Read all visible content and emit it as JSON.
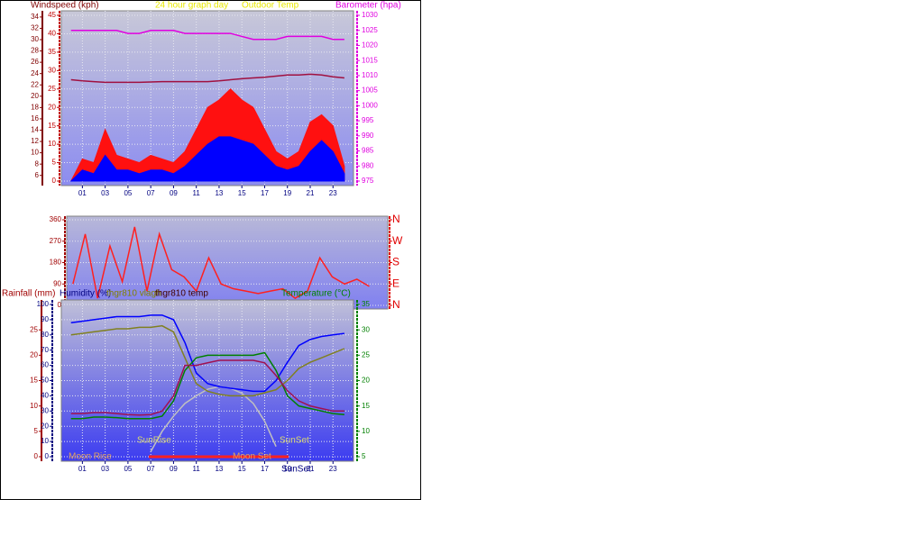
{
  "chart_data": [
    {
      "type": "line",
      "grid": true,
      "labels": [
        {
          "text": "Windspeed (kph)",
          "color": "#800000"
        },
        {
          "text": "24 hour graph day",
          "color": "#e8e800"
        },
        {
          "text": "Outdoor Temp",
          "color": "#e8e800"
        },
        {
          "text": "Barometer (hpa)",
          "color": "#e000e0"
        }
      ],
      "x": [
        0,
        1,
        2,
        3,
        4,
        5,
        6,
        7,
        8,
        9,
        10,
        11,
        12,
        13,
        14,
        15,
        16,
        17,
        18,
        19,
        20,
        21,
        22,
        23,
        24
      ],
      "xlim": [
        -0.85,
        24.8
      ],
      "xticks": [
        {
          "value": 1,
          "label": "01"
        },
        {
          "value": 3,
          "label": "03"
        },
        {
          "value": 5,
          "label": "05"
        },
        {
          "value": 7,
          "label": "07"
        },
        {
          "value": 9,
          "label": "09"
        },
        {
          "value": 11,
          "label": "11"
        },
        {
          "value": 13,
          "label": "13"
        },
        {
          "value": 15,
          "label": "15"
        },
        {
          "value": 17,
          "label": "17"
        },
        {
          "value": 19,
          "label": "19"
        },
        {
          "value": 21,
          "label": "21"
        },
        {
          "value": 23,
          "label": "23"
        }
      ],
      "ylim": [
        0,
        45
      ],
      "yticks": [
        0,
        5,
        10,
        15,
        20,
        25,
        30,
        35,
        40,
        45
      ],
      "y3lim": [
        5,
        34.3
      ],
      "y3ticks": [
        6,
        8,
        10,
        12,
        14,
        16,
        18,
        20,
        22,
        24,
        26,
        28,
        30,
        32,
        34
      ],
      "y2lim": [
        975,
        1030
      ],
      "y2ticks": [
        975,
        980,
        985,
        990,
        995,
        1000,
        1005,
        1010,
        1015,
        1020,
        1025,
        1030
      ],
      "series": [
        {
          "color": "#ff1010",
          "style": "area",
          "values": [
            0,
            6,
            5,
            14,
            7,
            6,
            5,
            7,
            6,
            5,
            8,
            14,
            20,
            22,
            25,
            22,
            20,
            14,
            8,
            6,
            8,
            16,
            18,
            15,
            4
          ]
        },
        {
          "color": "#0000ff",
          "style": "area",
          "values": [
            0,
            3,
            2,
            7,
            3,
            3,
            2,
            3,
            3,
            2,
            4,
            7,
            10,
            12,
            12,
            11,
            10,
            7,
            4,
            3,
            4,
            8,
            11,
            8,
            2
          ]
        },
        {
          "color": "#e000e0",
          "axis": "y2",
          "values": [
            1025,
            1025,
            1025,
            1025,
            1025,
            1024,
            1024,
            1025,
            1025,
            1025,
            1024,
            1024,
            1024,
            1024,
            1024,
            1023,
            1022,
            1022,
            1022,
            1023,
            1023,
            1023,
            1023,
            1022,
            1022
          ]
        },
        {
          "color": "#a01040",
          "values": [
            27.5,
            27.2,
            27,
            26.8,
            26.8,
            26.8,
            26.8,
            26.9,
            27,
            27,
            27,
            27,
            27,
            27.2,
            27.5,
            27.8,
            28,
            28.2,
            28.5,
            28.8,
            28.8,
            29,
            28.8,
            28.3,
            28
          ]
        }
      ]
    },
    {
      "type": "line",
      "grid": true,
      "labels": [],
      "x": [
        0,
        1,
        2,
        3,
        4,
        5,
        6,
        7,
        8,
        9,
        10,
        11,
        12,
        13,
        14,
        15,
        16,
        17,
        18,
        19,
        20,
        21,
        22,
        23,
        24
      ],
      "xlim": [
        -0.5,
        25.5
      ],
      "xticks": [],
      "ylim": [
        0,
        360
      ],
      "yticks": [
        0,
        90,
        180,
        270,
        360
      ],
      "y2lim": [
        0,
        360
      ],
      "y2ticks": [
        {
          "value": 360,
          "label": "N"
        },
        {
          "value": 270,
          "label": "W"
        },
        {
          "value": 180,
          "label": "S"
        },
        {
          "value": 90,
          "label": "E"
        },
        {
          "value": 0,
          "label": "N"
        }
      ],
      "series": [
        {
          "color": "#ff2020",
          "values": [
            90,
            300,
            30,
            250,
            100,
            330,
            60,
            300,
            150,
            120,
            60,
            200,
            90,
            70,
            60,
            50,
            60,
            70,
            30,
            60,
            200,
            120,
            90,
            110,
            80
          ]
        }
      ]
    },
    {
      "type": "line",
      "grid": true,
      "labels": [
        {
          "text": "Rainfall (mm)",
          "color": "#a00000"
        },
        {
          "text": "Humidity (%)",
          "color": "#000080"
        },
        {
          "text": "thgr810 vlagh",
          "color": "#808000"
        },
        {
          "text": "thgr810 temp",
          "color": "#400000"
        },
        {
          "text": "Temperature (°C)",
          "color": "#008000"
        },
        {
          "text": "SunRise",
          "color": "#d8d870"
        },
        {
          "text": "SunSet",
          "color": "#d8d870"
        },
        {
          "text": "Moon Rise",
          "color": "#e0a060"
        },
        {
          "text": "Moon Set",
          "color": "#e0a060"
        },
        {
          "text": "SunSet",
          "color": "#000080"
        }
      ],
      "x": [
        0,
        1,
        2,
        3,
        4,
        5,
        6,
        7,
        8,
        9,
        10,
        11,
        12,
        13,
        14,
        15,
        16,
        17,
        18,
        19,
        20,
        21,
        22,
        23,
        24
      ],
      "xlim": [
        -0.85,
        24.8
      ],
      "xticks": [
        {
          "value": 1,
          "label": "01"
        },
        {
          "value": 3,
          "label": "03"
        },
        {
          "value": 5,
          "label": "05"
        },
        {
          "value": 7,
          "label": "07"
        },
        {
          "value": 9,
          "label": "09"
        },
        {
          "value": 11,
          "label": "11"
        },
        {
          "value": 13,
          "label": "13"
        },
        {
          "value": 15,
          "label": "15"
        },
        {
          "value": 17,
          "label": "17"
        },
        {
          "value": 19,
          "label": "19"
        },
        {
          "value": 21,
          "label": "21"
        },
        {
          "value": 23,
          "label": "23"
        }
      ],
      "ylim": [
        0,
        100
      ],
      "yticks": [
        0,
        10,
        20,
        30,
        40,
        50,
        60,
        70,
        80,
        90,
        100
      ],
      "y3lim": [
        0,
        30
      ],
      "y3ticks": [
        0,
        5,
        10,
        15,
        20,
        25
      ],
      "y2lim": [
        5,
        35
      ],
      "y2ticks": [
        5,
        10,
        15,
        20,
        25,
        30,
        35
      ],
      "series": [
        {
          "color": "#c0c0c0",
          "axis": "y2",
          "values": [
            null,
            null,
            null,
            null,
            null,
            null,
            null,
            6,
            10,
            13,
            15.5,
            17,
            18.3,
            18.8,
            18.5,
            17.5,
            15.5,
            12,
            7,
            null,
            null,
            null,
            null,
            null,
            null
          ]
        },
        {
          "color": "#0000ff",
          "values": [
            88,
            89,
            90,
            91,
            92,
            92,
            92,
            93,
            93,
            90,
            75,
            55,
            48,
            46,
            45,
            44,
            43,
            43,
            50,
            62,
            73,
            77,
            79,
            80,
            81
          ]
        },
        {
          "color": "#808020",
          "values": [
            80,
            81,
            82,
            83,
            84,
            84,
            85,
            85,
            86,
            82,
            65,
            48,
            43,
            41,
            40,
            40,
            40,
            42,
            44,
            50,
            58,
            62,
            65,
            68,
            71
          ]
        },
        {
          "color": "#008000",
          "axis": "y2",
          "values": [
            12.5,
            12.5,
            12.8,
            12.8,
            12.7,
            12.5,
            12.5,
            12.5,
            13,
            16,
            22,
            24.5,
            25,
            25,
            25,
            25,
            25,
            25.5,
            22,
            17,
            15,
            14.5,
            14,
            13.5,
            13.3
          ]
        },
        {
          "color": "#a01050",
          "axis": "y2",
          "values": [
            13.5,
            13.5,
            13.7,
            13.7,
            13.5,
            13.3,
            13.2,
            13.3,
            14,
            17,
            23,
            23,
            23.5,
            24,
            24,
            24,
            24,
            23.5,
            21,
            18,
            16,
            15,
            14.5,
            14,
            14
          ]
        }
      ]
    }
  ]
}
